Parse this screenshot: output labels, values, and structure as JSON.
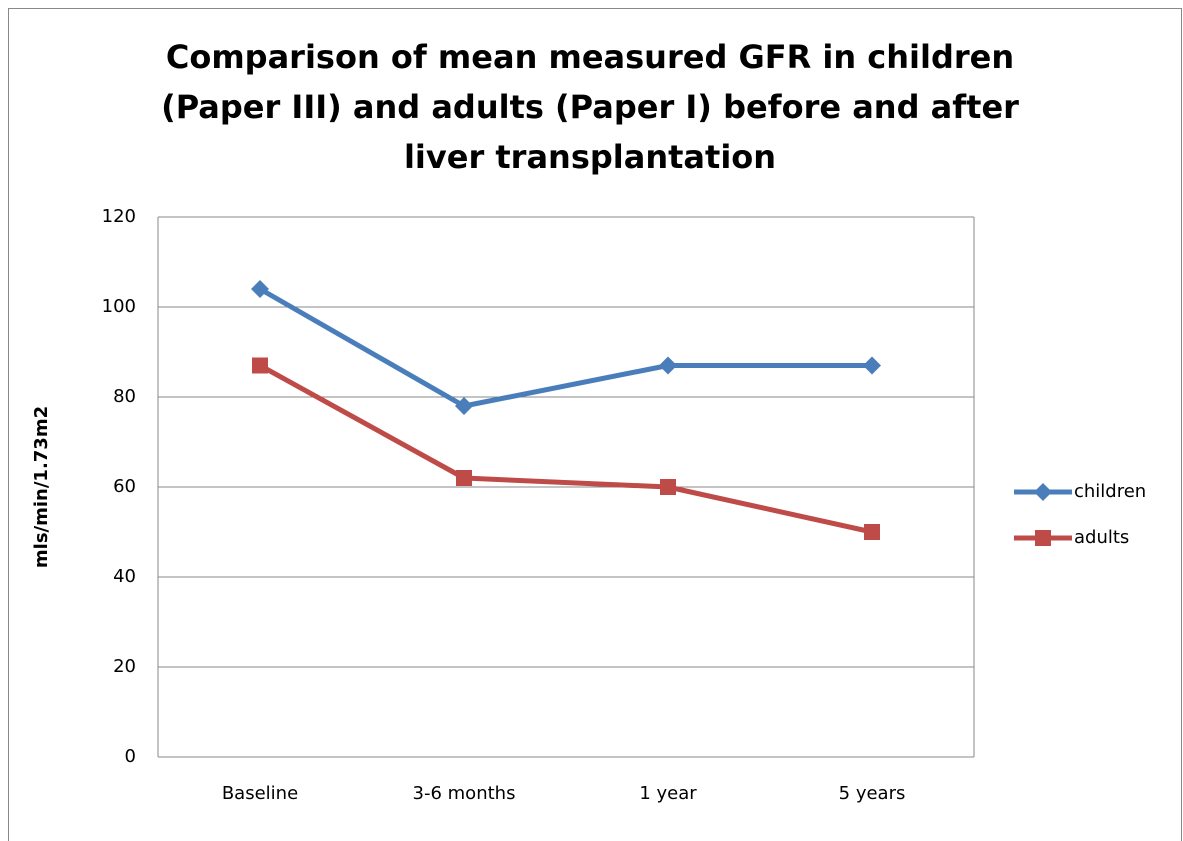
{
  "chart_data": {
    "type": "line",
    "title": "Comparison of mean measured GFR in children (Paper III) and adults (Paper I) before and after liver transplantation",
    "y_label": "mls/min/1.73m2",
    "categories": [
      "Baseline",
      "3-6 months",
      "1 year",
      "5 years"
    ],
    "series": [
      {
        "name": "children",
        "color": "#4a7ebb",
        "marker": "diamond",
        "values": [
          104,
          78,
          87,
          87
        ]
      },
      {
        "name": "adults",
        "color": "#be4b48",
        "marker": "square",
        "values": [
          87,
          62,
          60,
          50
        ]
      }
    ],
    "ylim": [
      0,
      120
    ],
    "yticks": [
      0,
      20,
      40,
      60,
      80,
      100,
      120
    ],
    "grid": true,
    "legend": "right"
  }
}
